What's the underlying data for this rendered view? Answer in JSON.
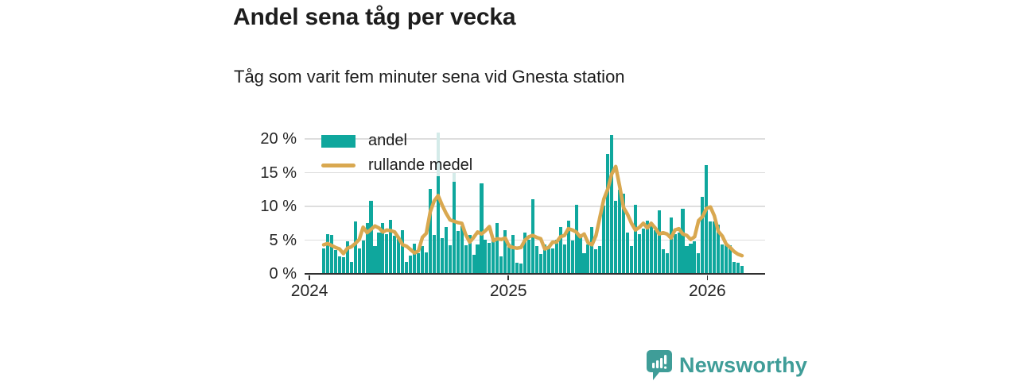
{
  "header": {
    "title": "Andel sena tåg per vecka",
    "subtitle": "Tåg som varit fem minuter sena vid Gnesta station"
  },
  "footer": {
    "brand": "Newsworthy",
    "brand_color": "#3f9d98"
  },
  "chart_data": {
    "type": "bar",
    "title": "Andel sena tåg per vecka",
    "subtitle": "Tåg som varit fem minuter sena vid Gnesta station",
    "unit": "%",
    "ylim": [
      0,
      22.3
    ],
    "grid": "horizontal",
    "legend_position": "top-left",
    "yticks": [
      {
        "value": 0,
        "label": "0 %"
      },
      {
        "value": 5,
        "label": "5 %"
      },
      {
        "value": 10,
        "label": "10 %"
      },
      {
        "value": 15,
        "label": "15 %"
      },
      {
        "value": 20,
        "label": "20 %"
      }
    ],
    "xticks": [
      {
        "label": "2024",
        "index": -3.6
      },
      {
        "label": "2025",
        "index": 46.8
      },
      {
        "label": "2026",
        "index": 97.2
      }
    ],
    "legend": [
      {
        "label": "andel",
        "type": "bar",
        "color": "#0fa79d"
      },
      {
        "label": "rullande medel",
        "type": "line",
        "color": "#d9a850"
      }
    ],
    "series": [
      {
        "name": "andel",
        "type": "bar",
        "color": "#0fa79d",
        "values": [
          3.7,
          5.8,
          5.6,
          3.4,
          2.5,
          2.4,
          4.7,
          1.7,
          7.7,
          3.7,
          4.8,
          7.4,
          10.7,
          4.0,
          6.0,
          7.4,
          5.8,
          7.9,
          5.5,
          5.2,
          6.4,
          1.7,
          2.6,
          4.4,
          3.0,
          4.0,
          3.1,
          12.5,
          5.6,
          20.8,
          5.2,
          6.8,
          4.1,
          14.8,
          6.2,
          6.9,
          4.1,
          5.7,
          2.7,
          4.2,
          13.3,
          5.0,
          4.5,
          5.0,
          7.4,
          2.5,
          6.4,
          4.4,
          5.6,
          1.5,
          1.4,
          6.0,
          5.0,
          10.9,
          4.0,
          2.8,
          4.2,
          4.0,
          3.6,
          5.0,
          6.8,
          4.2,
          7.8,
          4.8,
          10.1,
          5.6,
          2.9,
          4.2,
          6.8,
          3.5,
          4.0,
          10.0,
          17.6,
          20.5,
          10.7,
          12.3,
          11.8,
          6.0,
          4.0,
          10.1,
          5.8,
          6.6,
          7.8,
          7.2,
          6.4,
          9.3,
          3.5,
          2.9,
          8.2,
          5.8,
          6.0,
          9.5,
          4.0,
          4.4,
          4.7,
          2.9,
          11.3,
          16.0,
          7.6,
          7.6,
          7.2,
          4.2,
          4.3,
          4.1,
          1.7,
          1.5,
          1.1
        ]
      },
      {
        "name": "rullande medel",
        "type": "line",
        "color": "#d9a850",
        "values": [
          4.3,
          4.5,
          4.2,
          3.9,
          3.7,
          3.0,
          3.8,
          4.0,
          4.5,
          5.1,
          6.9,
          6.1,
          6.6,
          7.1,
          6.8,
          6.2,
          6.5,
          6.4,
          6.2,
          5.3,
          4.3,
          4.1,
          3.6,
          3.1,
          3.4,
          5.4,
          6.0,
          9.2,
          10.8,
          11.6,
          10.2,
          9.0,
          8.0,
          7.8,
          7.6,
          7.5,
          5.8,
          4.7,
          5.4,
          6.2,
          5.9,
          6.4,
          7.0,
          4.9,
          5.2,
          5.1,
          5.3,
          4.1,
          3.9,
          3.8,
          3.9,
          5.0,
          5.5,
          5.7,
          5.4,
          5.2,
          3.7,
          3.9,
          4.7,
          4.7,
          5.5,
          5.7,
          6.7,
          6.5,
          6.2,
          5.5,
          5.9,
          4.6,
          4.3,
          5.7,
          8.4,
          11.1,
          12.6,
          14.8,
          15.9,
          13.0,
          9.8,
          8.8,
          7.5,
          6.5,
          6.9,
          7.5,
          6.8,
          7.5,
          6.8,
          5.9,
          6.1,
          5.9,
          5.3,
          6.5,
          6.7,
          5.9,
          5.7,
          5.1,
          5.5,
          7.9,
          8.5,
          9.7,
          9.9,
          8.6,
          6.3,
          5.6,
          4.4,
          3.9,
          3.3,
          2.9,
          2.7
        ]
      }
    ],
    "light_bars": [
      {
        "index": 29,
        "value": 20.8,
        "solid_to": 14.4,
        "color": "#d4ebe9"
      },
      {
        "index": 33,
        "value": 14.8,
        "solid_to": 13.5,
        "color": "#d4ebe9"
      }
    ],
    "colors": {
      "bar": "#0fa79d",
      "bar_light": "#d4ebe9",
      "line": "#d9a850",
      "grid": "#dedede",
      "axis": "#2f2f2f",
      "text": "#1d1d1d"
    }
  }
}
